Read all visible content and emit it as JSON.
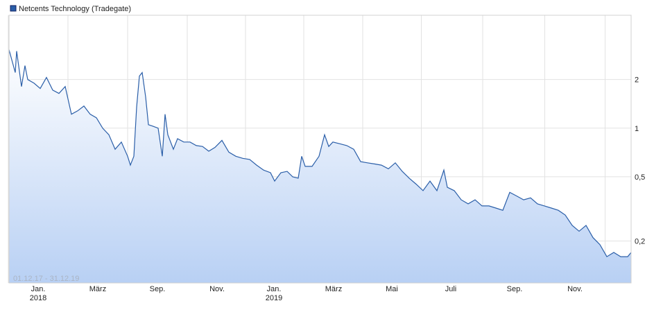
{
  "chart_data": {
    "type": "area-line",
    "subtitle": "01.12.17 - 31.12.19",
    "log_scale": true,
    "grid": true,
    "x": [
      0,
      9,
      11,
      18,
      23,
      27,
      36,
      45,
      54,
      63,
      72,
      81,
      90,
      99,
      108,
      117,
      126,
      135,
      144,
      153,
      162,
      171,
      175,
      180,
      184,
      188,
      192,
      197,
      201,
      207,
      215,
      221,
      225,
      229,
      237,
      243,
      252,
      261,
      270,
      279,
      288,
      297,
      307,
      317,
      327,
      337,
      347,
      357,
      367,
      377,
      383,
      392,
      401,
      409,
      417,
      422,
      427,
      437,
      447,
      455,
      461,
      467,
      477,
      487,
      497,
      507,
      517,
      527,
      537,
      547,
      557,
      567,
      577,
      587,
      597,
      607,
      617,
      627,
      632,
      642,
      652,
      662,
      672,
      682,
      692,
      702,
      712,
      722,
      732,
      742,
      752,
      762,
      772,
      782,
      792,
      802,
      812,
      822,
      832,
      842,
      852,
      862,
      872,
      882,
      892,
      897
    ],
    "xlim": [
      0,
      897
    ],
    "xticks": [
      {
        "value": 42,
        "label": "Jan."
      },
      {
        "value": 128,
        "label": "März"
      },
      {
        "value": 214,
        "label": "Sep."
      },
      {
        "value": 300,
        "label": "Nov."
      },
      {
        "value": 382,
        "label": "Jan."
      },
      {
        "value": 468,
        "label": "März"
      },
      {
        "value": 552,
        "label": "Mai"
      },
      {
        "value": 637,
        "label": "Juli"
      },
      {
        "value": 729,
        "label": "Sep."
      },
      {
        "value": 816,
        "label": "Nov."
      }
    ],
    "xtick_years": [
      {
        "value": 42,
        "label": "2018"
      },
      {
        "value": 382,
        "label": "2019"
      }
    ],
    "ylim": [
      0.11,
      5
    ],
    "yticks": [
      {
        "value": 0.2,
        "label": "0,2"
      },
      {
        "value": 0.5,
        "label": "0,5"
      },
      1,
      2
    ],
    "series": [
      {
        "name": "Netcents Technology (Tradegate)",
        "color": "#2a5ea8",
        "values": [
          3.06,
          2.21,
          3.0,
          1.81,
          2.44,
          2.0,
          1.9,
          1.76,
          2.06,
          1.72,
          1.64,
          1.81,
          1.22,
          1.28,
          1.37,
          1.22,
          1.16,
          1.0,
          0.91,
          0.74,
          0.82,
          0.67,
          0.59,
          0.67,
          1.35,
          2.1,
          2.21,
          1.56,
          1.05,
          1.03,
          1.0,
          0.67,
          1.22,
          0.91,
          0.74,
          0.86,
          0.82,
          0.82,
          0.78,
          0.77,
          0.72,
          0.76,
          0.84,
          0.71,
          0.67,
          0.65,
          0.64,
          0.59,
          0.55,
          0.53,
          0.47,
          0.53,
          0.54,
          0.5,
          0.49,
          0.67,
          0.58,
          0.58,
          0.67,
          0.91,
          0.77,
          0.82,
          0.8,
          0.78,
          0.74,
          0.62,
          0.61,
          0.6,
          0.59,
          0.56,
          0.61,
          0.54,
          0.49,
          0.45,
          0.41,
          0.47,
          0.41,
          0.55,
          0.43,
          0.41,
          0.36,
          0.34,
          0.36,
          0.33,
          0.33,
          0.32,
          0.31,
          0.4,
          0.38,
          0.36,
          0.37,
          0.34,
          0.33,
          0.32,
          0.31,
          0.29,
          0.25,
          0.23,
          0.25,
          0.21,
          0.19,
          0.16,
          0.17,
          0.16,
          0.16,
          0.17
        ]
      }
    ]
  }
}
